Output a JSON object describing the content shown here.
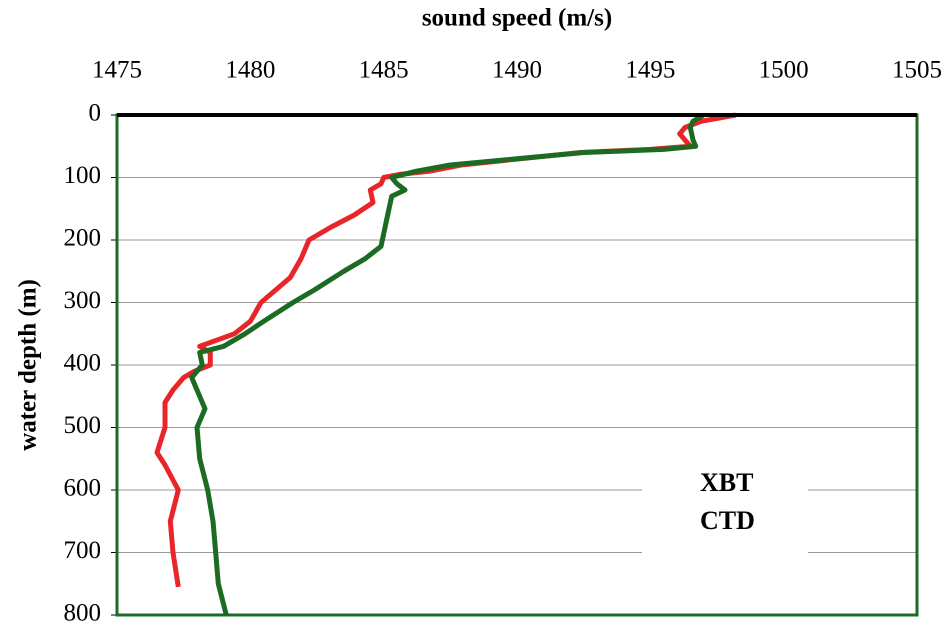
{
  "chart_data": {
    "type": "line",
    "x_label": "sound speed (m/s)",
    "y_label": "water depth (m)",
    "xlim": [
      1475,
      1505
    ],
    "xticks": [
      1475,
      1480,
      1485,
      1490,
      1495,
      1500,
      1505
    ],
    "ylim": [
      0,
      800
    ],
    "yticks": [
      0,
      100,
      200,
      300,
      400,
      500,
      600,
      700,
      800
    ],
    "y_inverted": true,
    "x_axis_position": "top",
    "grid": true,
    "series": [
      {
        "name": "XBT",
        "color": "#e8262a",
        "x": [
          1498.2,
          1496.9,
          1496.3,
          1496.1,
          1496.5,
          1495,
          1492.4,
          1490.1,
          1487.9,
          1486.7,
          1485.6,
          1485,
          1484.9,
          1484.5,
          1484.6,
          1483.9,
          1483,
          1482.2,
          1481.9,
          1481.5,
          1480.4,
          1480,
          1479.4,
          1478.1,
          1478.5,
          1478.5,
          1477.9,
          1477.5,
          1477.1,
          1476.8,
          1476.8,
          1476.5,
          1476.8,
          1477.3,
          1477,
          1477.1,
          1477.3
        ],
        "values": [
          0,
          10,
          20,
          30,
          50,
          55,
          60,
          70,
          80,
          90,
          95,
          100,
          110,
          120,
          140,
          160,
          180,
          200,
          230,
          260,
          300,
          330,
          350,
          370,
          380,
          400,
          410,
          420,
          440,
          460,
          500,
          540,
          560,
          600,
          650,
          700,
          755
        ]
      },
      {
        "name": "CTD",
        "color": "#1b6b22",
        "x": [
          1497,
          1496.6,
          1496.5,
          1496.6,
          1496.7,
          1495.5,
          1492.5,
          1490,
          1487.5,
          1486.2,
          1485.3,
          1485.5,
          1485.8,
          1485.3,
          1485.2,
          1485.1,
          1485,
          1484.9,
          1484.3,
          1483.5,
          1482.4,
          1481.6,
          1480.5,
          1479.8,
          1479,
          1478.1,
          1478.2,
          1477.8,
          1478,
          1478.3,
          1478,
          1478.1,
          1478.4,
          1478.6,
          1478.7,
          1478.8,
          1479.1
        ],
        "values": [
          0,
          10,
          20,
          40,
          50,
          55,
          60,
          70,
          80,
          90,
          100,
          110,
          120,
          130,
          150,
          170,
          190,
          210,
          230,
          250,
          280,
          300,
          330,
          350,
          370,
          380,
          400,
          420,
          440,
          470,
          500,
          550,
          600,
          650,
          700,
          750,
          800
        ]
      }
    ]
  }
}
